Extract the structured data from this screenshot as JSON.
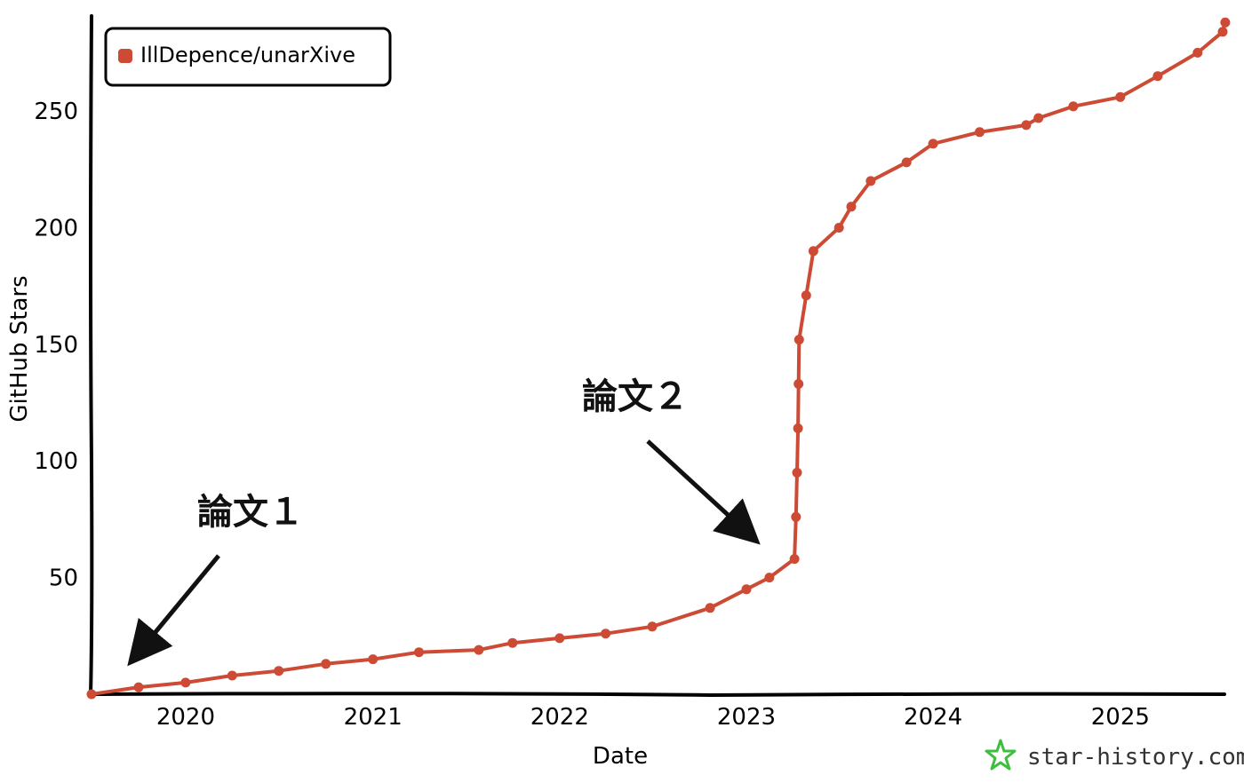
{
  "chart_data": {
    "type": "line",
    "xlabel": "Date",
    "ylabel": "GitHub Stars",
    "x_ticks": [
      "2020",
      "2021",
      "2022",
      "2023",
      "2024",
      "2025"
    ],
    "y_ticks": [
      50,
      100,
      150,
      200,
      250
    ],
    "xlim": [
      "2019-07-01",
      "2025-07-20"
    ],
    "ylim": [
      0,
      290
    ],
    "legend_position": "top-left",
    "series": [
      {
        "name": "IllDepence/unarXive",
        "color": "#cd4b35",
        "points": [
          {
            "x": "2019-07-01",
            "y": 0
          },
          {
            "x": "2019-10-01",
            "y": 3
          },
          {
            "x": "2020-01-01",
            "y": 5
          },
          {
            "x": "2020-04-01",
            "y": 8
          },
          {
            "x": "2020-07-01",
            "y": 10
          },
          {
            "x": "2020-10-01",
            "y": 13
          },
          {
            "x": "2021-01-01",
            "y": 15
          },
          {
            "x": "2021-04-01",
            "y": 18
          },
          {
            "x": "2021-07-27",
            "y": 19
          },
          {
            "x": "2021-10-01",
            "y": 22
          },
          {
            "x": "2022-01-01",
            "y": 24
          },
          {
            "x": "2022-04-01",
            "y": 26
          },
          {
            "x": "2022-07-01",
            "y": 29
          },
          {
            "x": "2022-10-22",
            "y": 37
          },
          {
            "x": "2023-01-01",
            "y": 45
          },
          {
            "x": "2023-02-15",
            "y": 50
          },
          {
            "x": "2023-04-05",
            "y": 58
          },
          {
            "x": "2023-04-08",
            "y": 76
          },
          {
            "x": "2023-04-10",
            "y": 95
          },
          {
            "x": "2023-04-12",
            "y": 114
          },
          {
            "x": "2023-04-13",
            "y": 133
          },
          {
            "x": "2023-04-14",
            "y": 152
          },
          {
            "x": "2023-04-28",
            "y": 171
          },
          {
            "x": "2023-05-12",
            "y": 190
          },
          {
            "x": "2023-07-01",
            "y": 200
          },
          {
            "x": "2023-07-25",
            "y": 209
          },
          {
            "x": "2023-09-01",
            "y": 220
          },
          {
            "x": "2023-11-10",
            "y": 228
          },
          {
            "x": "2024-01-01",
            "y": 236
          },
          {
            "x": "2024-04-01",
            "y": 241
          },
          {
            "x": "2024-07-01",
            "y": 244
          },
          {
            "x": "2024-07-25",
            "y": 247
          },
          {
            "x": "2024-10-01",
            "y": 252
          },
          {
            "x": "2025-01-01",
            "y": 256
          },
          {
            "x": "2025-03-15",
            "y": 265
          },
          {
            "x": "2025-06-01",
            "y": 275
          },
          {
            "x": "2025-07-20",
            "y": 284
          },
          {
            "x": "2025-07-25",
            "y": 288
          }
        ]
      }
    ],
    "annotations": [
      {
        "text": "論文１"
      },
      {
        "text": "論文２"
      }
    ]
  },
  "watermark": {
    "text": "star-history.com",
    "icon": "star-history-logo-icon",
    "color": "#3dbf3d"
  }
}
